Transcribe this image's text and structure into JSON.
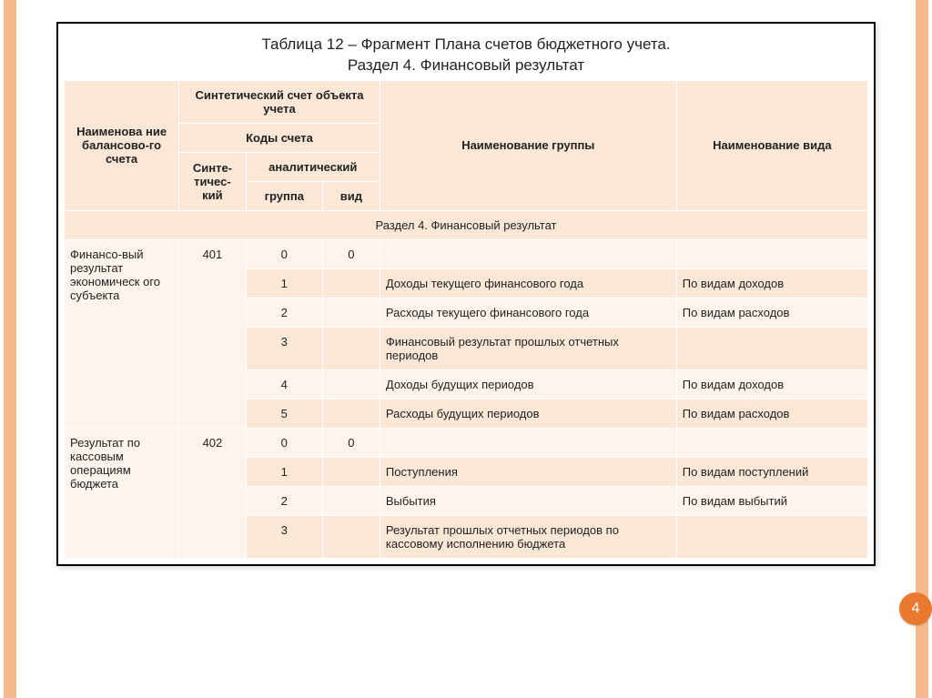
{
  "page_number": "4",
  "colors": {
    "side_stripe": "#f5b98a",
    "badge_bg": "#e8792e",
    "badge_text": "#ffffff",
    "header_bg": "#fbe7d6",
    "row_light": "#fdf4ed",
    "row_dark": "#fbe7d6",
    "border_outer": "#000000",
    "cell_border": "#ffffff",
    "text": "#222222"
  },
  "title_line1": "Таблица 12 – Фрагмент Плана счетов бюджетного учета.",
  "title_line2": "Раздел 4. Финансовый результат",
  "headers": {
    "balance_name": "Наименова ние балансово-го счета",
    "synthetic_account": "Синтетический счет объекта учета",
    "group_name": "Наименование группы",
    "kind_name": "Наименование вида",
    "codes": "Коды счета",
    "synthetic": "Синте-тичес-кий",
    "analytic": "аналитический",
    "group": "группа",
    "kind": "вид"
  },
  "section_label": "Раздел 4. Финансовый результат",
  "groups": [
    {
      "balance_name": "Финансо-вый результат экономическ ого субъекта",
      "synthetic_code": "401",
      "rows": [
        {
          "group": "0",
          "kind": "0",
          "group_name": "",
          "kind_name": ""
        },
        {
          "group": "1",
          "kind": "",
          "group_name": "Доходы текущего финансового года",
          "kind_name": "По видам доходов"
        },
        {
          "group": "2",
          "kind": "",
          "group_name": "Расходы текущего  финансового года",
          "kind_name": "По видам расходов"
        },
        {
          "group": "3",
          "kind": "",
          "group_name": "Финансовый результат прошлых отчетных периодов",
          "kind_name": ""
        },
        {
          "group": "4",
          "kind": "",
          "group_name": "Доходы будущих периодов",
          "kind_name": "По видам доходов"
        },
        {
          "group": "5",
          "kind": "",
          "group_name": "Расходы будущих периодов",
          "kind_name": "По видам расходов"
        }
      ]
    },
    {
      "balance_name": "Результат по  кассовым операциям бюджета",
      "synthetic_code": "402",
      "rows": [
        {
          "group": "0",
          "kind": "0",
          "group_name": "",
          "kind_name": ""
        },
        {
          "group": "1",
          "kind": "",
          "group_name": "Поступления",
          "kind_name": "По видам поступлений"
        },
        {
          "group": "2",
          "kind": "",
          "group_name": "Выбытия",
          "kind_name": "По видам выбытий"
        },
        {
          "group": "3",
          "kind": "",
          "group_name": "Результат прошлых отчетных периодов по кассовому исполнению бюджета",
          "kind_name": ""
        }
      ]
    }
  ]
}
